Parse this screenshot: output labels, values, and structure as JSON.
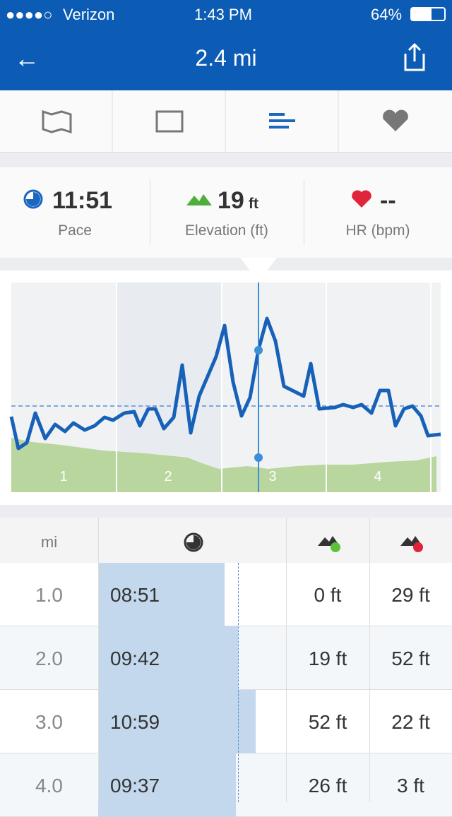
{
  "status_bar": {
    "carrier": "Verizon",
    "time": "1:43 PM",
    "battery": "64%"
  },
  "header": {
    "title": "2.4 mi"
  },
  "stats": [
    {
      "value": "11:51",
      "label": "Pace"
    },
    {
      "value": "19",
      "unit": "ft",
      "label": "Elevation (ft)"
    },
    {
      "value": "--",
      "label": "HR (bpm)"
    }
  ],
  "chart": {
    "segment_labels": [
      "1",
      "2",
      "3",
      "4"
    ]
  },
  "table": {
    "header": "mi",
    "rows": [
      [
        "1.0",
        "08:51",
        "0 ft",
        "29 ft"
      ],
      [
        "2.0",
        "09:42",
        "19 ft",
        "52 ft"
      ],
      [
        "3.0",
        "10:59",
        "52 ft",
        "22 ft"
      ],
      [
        "4.0",
        "09:37",
        "26 ft",
        "3 ft"
      ]
    ]
  }
}
